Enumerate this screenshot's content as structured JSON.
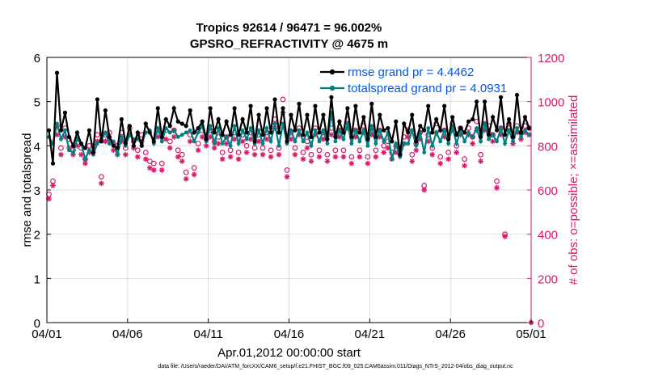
{
  "colors": {
    "rmse": "#000000",
    "spread": "#008080",
    "obs": "#d6196b",
    "legend_text": "#0057e7",
    "grid": "#d0d0d0"
  },
  "chart_data": {
    "type": "line",
    "title": "Tropics 92614 / 96471 = 96.002%",
    "subtitle": "GPSRO_REFRACTIVITY @ 4675 m",
    "xlabel": "Apr.01,2012 00:00:00 start",
    "ylabel": "rmse and totalspread",
    "y2label": "# of obs: o=possible; ×=assimilated",
    "footnote": "data file: /Users/raeder/DAI/ATM_forcXX/CAM6_setup/f.e21.FHIST_BGC.f09_025.CAM6assim.011/Diags_NTrS_2012-04/obs_diag_output.nc",
    "xlim": [
      0,
      30
    ],
    "ylim": [
      0,
      6
    ],
    "y2lim": [
      0,
      1200
    ],
    "xticks": [
      0,
      5,
      10,
      15,
      20,
      25,
      30
    ],
    "xtick_labels": [
      "04/01",
      "04/06",
      "04/11",
      "04/16",
      "04/21",
      "04/26",
      "05/01"
    ],
    "yticks": [
      "0",
      "1",
      "2",
      "3",
      "4",
      "5",
      "6"
    ],
    "y2ticks": [
      "0",
      "200",
      "400",
      "600",
      "800",
      "1000",
      "1200"
    ],
    "legend": [
      {
        "label": "rmse grand pr = 4.4462"
      },
      {
        "label": "totalspread grand pr = 4.0931"
      }
    ],
    "legend_position": "top-right",
    "grid": true,
    "sample_times": [
      "0.125",
      "0.375",
      "0.625",
      "0.875",
      "1.125",
      "1.375",
      "1.625",
      "1.875",
      "2.125",
      "2.375",
      "2.625",
      "2.875",
      "3.125",
      "3.375",
      "3.625",
      "3.875",
      "4.125",
      "4.375",
      "4.625",
      "4.875",
      "5.125",
      "5.375",
      "5.625",
      "5.875",
      "6.125",
      "6.375",
      "6.625",
      "6.875",
      "7.125",
      "7.375",
      "7.625",
      "7.875",
      "8.125",
      "8.375",
      "8.625",
      "8.875",
      "9.125",
      "9.375",
      "9.625",
      "9.875",
      "10.125",
      "10.375",
      "10.625",
      "10.875",
      "11.125",
      "11.375",
      "11.625",
      "11.875",
      "12.125",
      "12.375",
      "12.625",
      "12.875",
      "13.125",
      "13.375",
      "13.625",
      "13.875",
      "14.125",
      "14.375",
      "14.625",
      "14.875",
      "15.125",
      "15.375",
      "15.625",
      "15.875",
      "16.125",
      "16.375",
      "16.625",
      "16.875",
      "17.125",
      "17.375",
      "17.625",
      "17.875",
      "18.125",
      "18.375",
      "18.625",
      "18.875",
      "19.125",
      "19.375",
      "19.625",
      "19.875",
      "20.125",
      "20.375",
      "20.625",
      "20.875",
      "21.125",
      "21.375",
      "21.625",
      "21.875",
      "22.125",
      "22.375",
      "22.625",
      "22.875",
      "23.125",
      "23.375",
      "23.625",
      "23.875",
      "24.125",
      "24.375",
      "24.625",
      "24.875",
      "25.125",
      "25.375",
      "25.625",
      "25.875",
      "26.125",
      "26.375",
      "26.625",
      "26.875",
      "27.125",
      "27.375",
      "27.625",
      "27.875",
      "28.125",
      "28.375",
      "28.625",
      "28.875",
      "29.125",
      "29.375",
      "29.625",
      "29.875"
    ],
    "series": [
      {
        "name": "rmse",
        "axis": "left",
        "values": [
          4.35,
          3.6,
          5.65,
          4.35,
          4.75,
          4.2,
          4.0,
          4.3,
          4.05,
          3.95,
          4.35,
          3.85,
          5.05,
          4.1,
          4.8,
          4.2,
          4.0,
          3.95,
          4.6,
          4.05,
          4.45,
          4.0,
          4.3,
          4.0,
          4.5,
          4.3,
          4.1,
          4.85,
          4.2,
          4.6,
          4.45,
          4.85,
          4.55,
          4.5,
          4.45,
          4.8,
          4.3,
          4.4,
          4.55,
          4.15,
          4.85,
          4.3,
          4.6,
          4.25,
          4.55,
          4.25,
          4.85,
          4.25,
          4.6,
          4.3,
          4.9,
          4.1,
          4.7,
          4.25,
          4.85,
          4.3,
          5.05,
          4.3,
          4.85,
          4.1,
          4.7,
          4.35,
          4.95,
          4.25,
          4.7,
          4.2,
          4.9,
          4.3,
          4.7,
          4.15,
          5.1,
          4.2,
          4.55,
          4.3,
          4.85,
          4.2,
          4.9,
          4.3,
          4.65,
          4.15,
          4.95,
          4.2,
          4.7,
          4.35,
          4.4,
          4.1,
          4.55,
          3.8,
          4.5,
          4.3,
          4.7,
          4.1,
          4.45,
          4.35,
          4.9,
          4.3,
          4.6,
          4.35,
          4.9,
          4.15,
          4.65,
          4.25,
          4.4,
          4.3,
          4.55,
          4.6,
          5.0,
          4.2,
          5.0,
          4.25,
          4.65,
          4.35,
          5.1,
          4.25,
          4.6,
          4.2,
          5.15,
          4.3,
          4.65,
          4.4
        ]
      },
      {
        "name": "totalspread",
        "axis": "left",
        "values": [
          4.2,
          4.05,
          4.5,
          4.15,
          4.35,
          3.9,
          3.85,
          4.15,
          4.05,
          3.7,
          3.9,
          3.8,
          4.05,
          4.15,
          4.3,
          4.05,
          4.1,
          3.8,
          4.2,
          4.0,
          4.25,
          4.15,
          4.15,
          4.05,
          4.3,
          4.35,
          4.05,
          4.4,
          4.1,
          4.4,
          4.3,
          4.35,
          4.2,
          4.25,
          4.3,
          4.35,
          4.1,
          4.3,
          4.45,
          4.1,
          4.45,
          4.05,
          4.4,
          4.05,
          4.2,
          4.0,
          4.45,
          4.05,
          4.35,
          4.15,
          4.4,
          4.05,
          4.35,
          4.05,
          4.4,
          4.1,
          4.5,
          4.0,
          4.5,
          4.05,
          4.35,
          4.1,
          4.35,
          4.1,
          4.3,
          4.0,
          4.35,
          4.1,
          4.35,
          4.05,
          4.75,
          4.1,
          4.35,
          4.15,
          4.5,
          4.05,
          4.35,
          4.1,
          4.35,
          4.0,
          4.45,
          4.05,
          4.35,
          4.1,
          4.3,
          3.7,
          4.05,
          3.75,
          4.05,
          4.05,
          4.35,
          4.0,
          4.3,
          3.85,
          4.4,
          4.0,
          4.3,
          4.1,
          4.35,
          4.05,
          4.45,
          4.05,
          4.35,
          4.1,
          4.3,
          4.2,
          4.4,
          4.1,
          4.5,
          4.15,
          4.25,
          4.1,
          4.4,
          4.05,
          4.35,
          4.1,
          4.4,
          4.2,
          4.35,
          4.25
        ]
      },
      {
        "name": "obs possible",
        "axis": "right",
        "values": [
          580,
          640,
          890,
          790,
          880,
          830,
          780,
          830,
          790,
          740,
          800,
          800,
          850,
          660,
          850,
          860,
          810,
          800,
          860,
          790,
          880,
          820,
          780,
          850,
          770,
          730,
          720,
          870,
          720,
          870,
          820,
          870,
          780,
          760,
          680,
          850,
          700,
          810,
          870,
          830,
          870,
          820,
          840,
          770,
          840,
          780,
          860,
          770,
          850,
          800,
          860,
          790,
          850,
          790,
          860,
          780,
          920,
          790,
          1010,
          690,
          860,
          790,
          880,
          770,
          820,
          760,
          880,
          780,
          860,
          760,
          880,
          780,
          870,
          780,
          920,
          750,
          870,
          780,
          890,
          750,
          880,
          780,
          870,
          800,
          820,
          770,
          800,
          790,
          840,
          870,
          760,
          810,
          860,
          620,
          850,
          790,
          900,
          750,
          870,
          770,
          900,
          800,
          880,
          740,
          880,
          840,
          910,
          760,
          900,
          890,
          850,
          640,
          880,
          400,
          900,
          840,
          890,
          860,
          890,
          880
        ]
      },
      {
        "name": "obs assimilated",
        "axis": "right",
        "values": [
          560,
          620,
          850,
          760,
          840,
          790,
          760,
          800,
          760,
          720,
          770,
          770,
          820,
          630,
          820,
          830,
          780,
          760,
          820,
          760,
          850,
          790,
          750,
          820,
          740,
          700,
          690,
          840,
          690,
          830,
          790,
          840,
          750,
          730,
          650,
          820,
          670,
          780,
          840,
          800,
          840,
          790,
          810,
          740,
          810,
          750,
          830,
          740,
          820,
          770,
          830,
          760,
          820,
          760,
          830,
          750,
          880,
          760,
          950,
          660,
          830,
          760,
          850,
          740,
          790,
          730,
          850,
          750,
          830,
          730,
          850,
          750,
          840,
          750,
          880,
          720,
          840,
          750,
          860,
          720,
          850,
          750,
          840,
          770,
          790,
          740,
          770,
          760,
          810,
          840,
          730,
          780,
          830,
          600,
          820,
          760,
          860,
          720,
          840,
          740,
          870,
          770,
          850,
          710,
          850,
          810,
          870,
          730,
          870,
          860,
          820,
          610,
          850,
          390,
          870,
          810,
          860,
          830,
          860,
          850
        ]
      }
    ]
  }
}
